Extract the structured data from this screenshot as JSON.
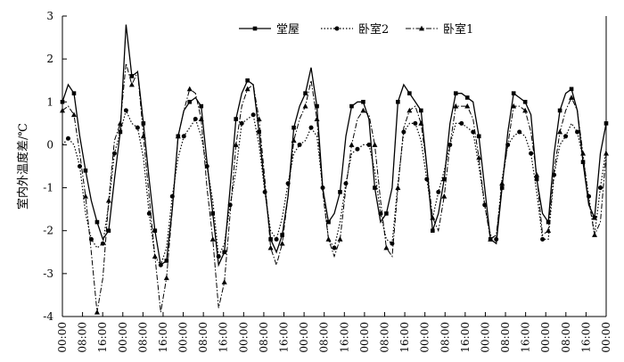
{
  "chart_data": {
    "type": "line",
    "ylabel": "室内外温度差/℃",
    "ylim": [
      -4,
      3
    ],
    "yticks": [
      -4,
      -3,
      -2,
      -1,
      0,
      1,
      2,
      3
    ],
    "x_tick_labels": [
      "00:00",
      "08:00",
      "16:00",
      "00:00",
      "08:00",
      "16:00",
      "00:00",
      "08:00",
      "16:00",
      "00:00",
      "08:00",
      "16:00",
      "00:00",
      "08:00",
      "16:00",
      "00:00",
      "08:00",
      "16:00",
      "00:00",
      "08:00",
      "16:00",
      "00:00",
      "08:00",
      "16:00",
      "00:00",
      "08:00",
      "16:00",
      "00:00"
    ],
    "x_hours_per_tick": 8,
    "legend_position": "top",
    "series": [
      {
        "name": "堂屋",
        "marker": "square",
        "line": "solid",
        "values": [
          1.0,
          1.4,
          1.2,
          0.2,
          -0.6,
          -1.3,
          -1.8,
          -2.2,
          -2.0,
          -0.8,
          0.3,
          2.8,
          1.6,
          1.7,
          0.5,
          -0.8,
          -2.0,
          -2.8,
          -2.7,
          -1.5,
          0.2,
          0.8,
          1.0,
          1.1,
          0.9,
          -0.4,
          -1.6,
          -2.8,
          -2.5,
          -1.0,
          0.6,
          1.2,
          1.5,
          1.4,
          0.3,
          -1.0,
          -2.2,
          -2.5,
          -2.1,
          -1.2,
          0.4,
          0.9,
          1.2,
          1.8,
          0.9,
          -1.0,
          -1.8,
          -1.6,
          -1.1,
          0.2,
          0.9,
          1.0,
          1.0,
          0.6,
          -1.0,
          -1.8,
          -1.6,
          -1.0,
          1.0,
          1.4,
          1.2,
          1.0,
          0.8,
          -0.5,
          -2.0,
          -1.6,
          -0.8,
          0.5,
          1.2,
          1.2,
          1.1,
          1.0,
          0.2,
          -1.0,
          -2.2,
          -2.3,
          -1.0,
          0.3,
          1.2,
          1.1,
          1.0,
          0.7,
          -0.8,
          -1.6,
          -1.8,
          -0.2,
          0.8,
          1.2,
          1.3,
          0.8,
          -0.4,
          -1.4,
          -1.7,
          -0.2,
          0.5
        ]
      },
      {
        "name": "卧室2",
        "marker": "circle",
        "line": "dotted",
        "values": [
          0.0,
          0.15,
          0.0,
          -0.5,
          -1.6,
          -2.2,
          -2.4,
          -2.3,
          -1.4,
          -0.2,
          0.3,
          0.8,
          0.5,
          0.4,
          -0.3,
          -1.6,
          -2.6,
          -2.8,
          -2.4,
          -1.2,
          -0.3,
          0.2,
          0.4,
          0.6,
          0.2,
          -0.5,
          -1.3,
          -2.6,
          -2.3,
          -1.4,
          -0.6,
          0.5,
          0.6,
          0.7,
          0.0,
          -1.1,
          -2.0,
          -2.2,
          -1.7,
          -0.9,
          -0.2,
          0.0,
          0.1,
          0.4,
          0.2,
          -1.0,
          -2.2,
          -2.4,
          -1.8,
          -0.9,
          -0.2,
          -0.1,
          0.0,
          0.0,
          -0.6,
          -1.6,
          -2.2,
          -2.3,
          -0.9,
          0.3,
          0.5,
          0.5,
          0.1,
          -0.8,
          -1.7,
          -1.1,
          -0.6,
          0.0,
          0.5,
          0.5,
          0.4,
          0.3,
          -0.5,
          -1.4,
          -2.1,
          -2.2,
          -0.8,
          0.0,
          0.2,
          0.3,
          0.2,
          -0.2,
          -1.1,
          -2.2,
          -2.2,
          -0.7,
          0.0,
          0.2,
          0.5,
          0.3,
          -0.3,
          -1.2,
          -2.1,
          -1.0,
          -0.1
        ]
      },
      {
        "name": "卧室1",
        "marker": "triangle",
        "line": "dashdot",
        "values": [
          0.8,
          0.9,
          0.7,
          -0.2,
          -1.2,
          -2.5,
          -3.9,
          -3.1,
          -1.3,
          0.1,
          0.5,
          1.9,
          1.4,
          1.7,
          0.2,
          -1.2,
          -2.6,
          -3.9,
          -3.1,
          -1.5,
          0.2,
          0.8,
          1.3,
          1.2,
          0.6,
          -1.0,
          -2.2,
          -3.8,
          -3.2,
          -1.6,
          0.0,
          0.9,
          1.3,
          1.4,
          0.6,
          -0.8,
          -2.4,
          -2.8,
          -2.3,
          -1.2,
          0.1,
          0.6,
          0.9,
          1.5,
          0.6,
          -1.1,
          -2.2,
          -2.6,
          -2.2,
          -1.0,
          0.0,
          0.6,
          0.8,
          0.7,
          0.0,
          -1.3,
          -2.4,
          -2.6,
          -1.0,
          0.4,
          0.8,
          0.9,
          0.5,
          -0.5,
          -1.7,
          -2.0,
          -1.2,
          0.0,
          0.9,
          0.9,
          0.9,
          0.6,
          -0.3,
          -1.4,
          -2.2,
          -2.1,
          -0.9,
          0.0,
          0.9,
          0.9,
          0.8,
          0.3,
          -0.7,
          -2.1,
          -2.0,
          -0.6,
          0.3,
          0.8,
          1.1,
          0.8,
          -0.2,
          -1.3,
          -2.1,
          -1.8,
          -0.2
        ]
      }
    ]
  }
}
